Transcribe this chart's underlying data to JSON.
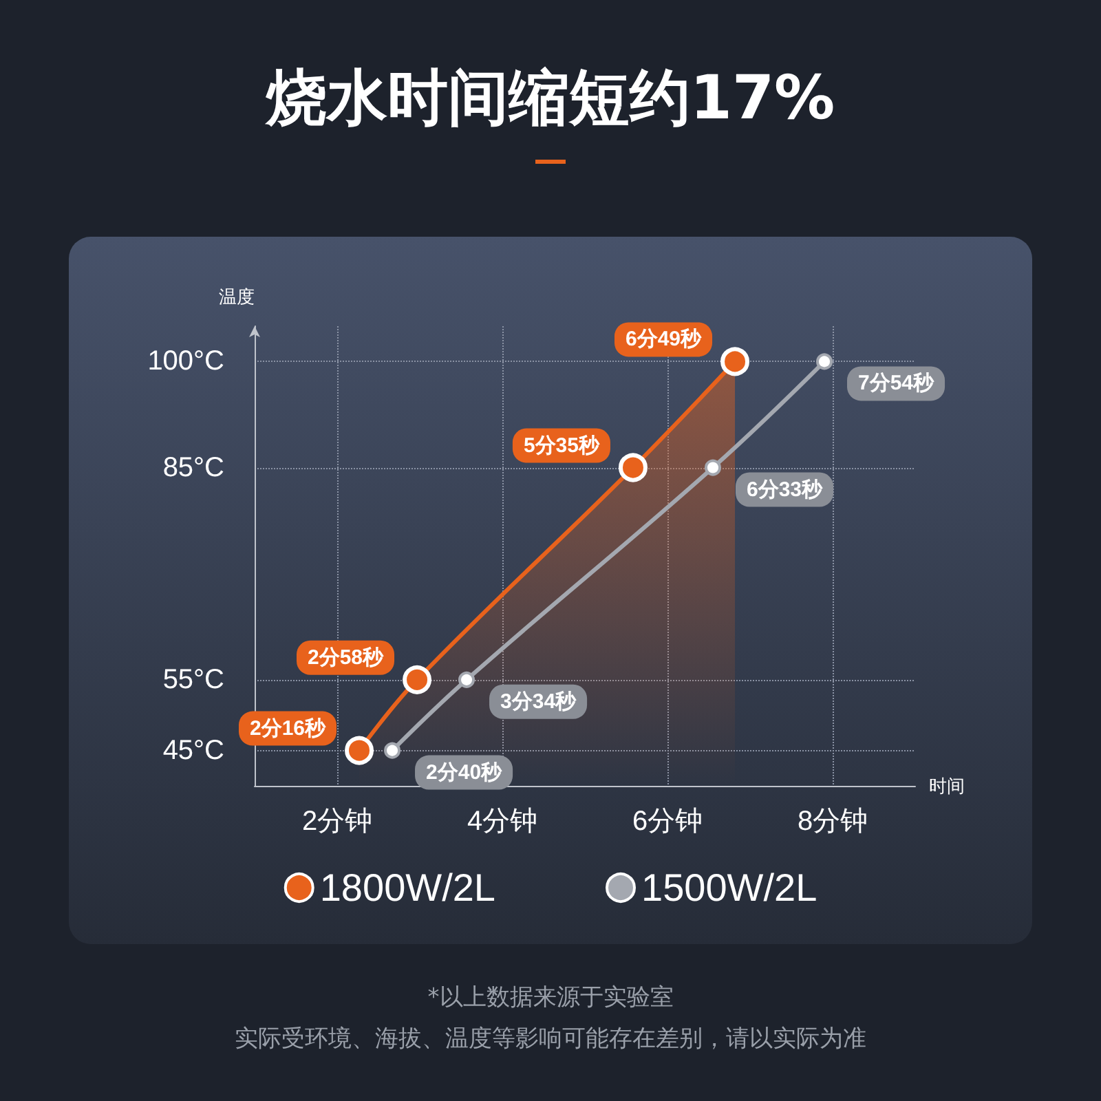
{
  "chart_data": {
    "type": "line",
    "title": "烧水时间缩短约17%",
    "xlabel": "时间",
    "ylabel": "温度",
    "xlim": [
      1,
      9
    ],
    "xticks": [
      {
        "value": 2,
        "label": "2分钟"
      },
      {
        "value": 4,
        "label": "4分钟"
      },
      {
        "value": 6,
        "label": "6分钟"
      },
      {
        "value": 8,
        "label": "8分钟"
      }
    ],
    "ylim": [
      40,
      105
    ],
    "yticks": [
      {
        "value": 45,
        "label": "45°C"
      },
      {
        "value": 55,
        "label": "55°C"
      },
      {
        "value": 85,
        "label": "85°C"
      },
      {
        "value": 100,
        "label": "100°C"
      }
    ],
    "series": [
      {
        "name": "1800W/2L",
        "type": "area",
        "color": "#e8621c",
        "x": [
          2.267,
          2.967,
          5.583,
          6.817
        ],
        "values": [
          45,
          55,
          85,
          100
        ]
      },
      {
        "name": "1500W/2L",
        "color": "#a4a8b0",
        "x": [
          2.667,
          3.567,
          6.55,
          7.9
        ],
        "values": [
          45,
          55,
          85,
          100
        ]
      }
    ],
    "grid": true,
    "legend": "bottom",
    "marker": "circle",
    "line_style": "solid",
    "annotations": [
      {
        "text": "2分16秒",
        "x": 2.267,
        "y": 45
      },
      {
        "text": "2分58秒",
        "x": 2.967,
        "y": 55
      },
      {
        "text": "5分35秒",
        "x": 5.583,
        "y": 85
      },
      {
        "text": "6分49秒",
        "x": 6.817,
        "y": 100
      },
      {
        "text": "2分40秒",
        "x": 2.667,
        "y": 45
      },
      {
        "text": "3分34秒",
        "x": 3.567,
        "y": 55
      },
      {
        "text": "6分33秒",
        "x": 6.55,
        "y": 85
      },
      {
        "text": "7分54秒",
        "x": 7.9,
        "y": 100
      },
      "*以上数据来源于实验室",
      "实际受环境、海拔、温度等影响可能存在差别，请以实际为准"
    ]
  }
}
